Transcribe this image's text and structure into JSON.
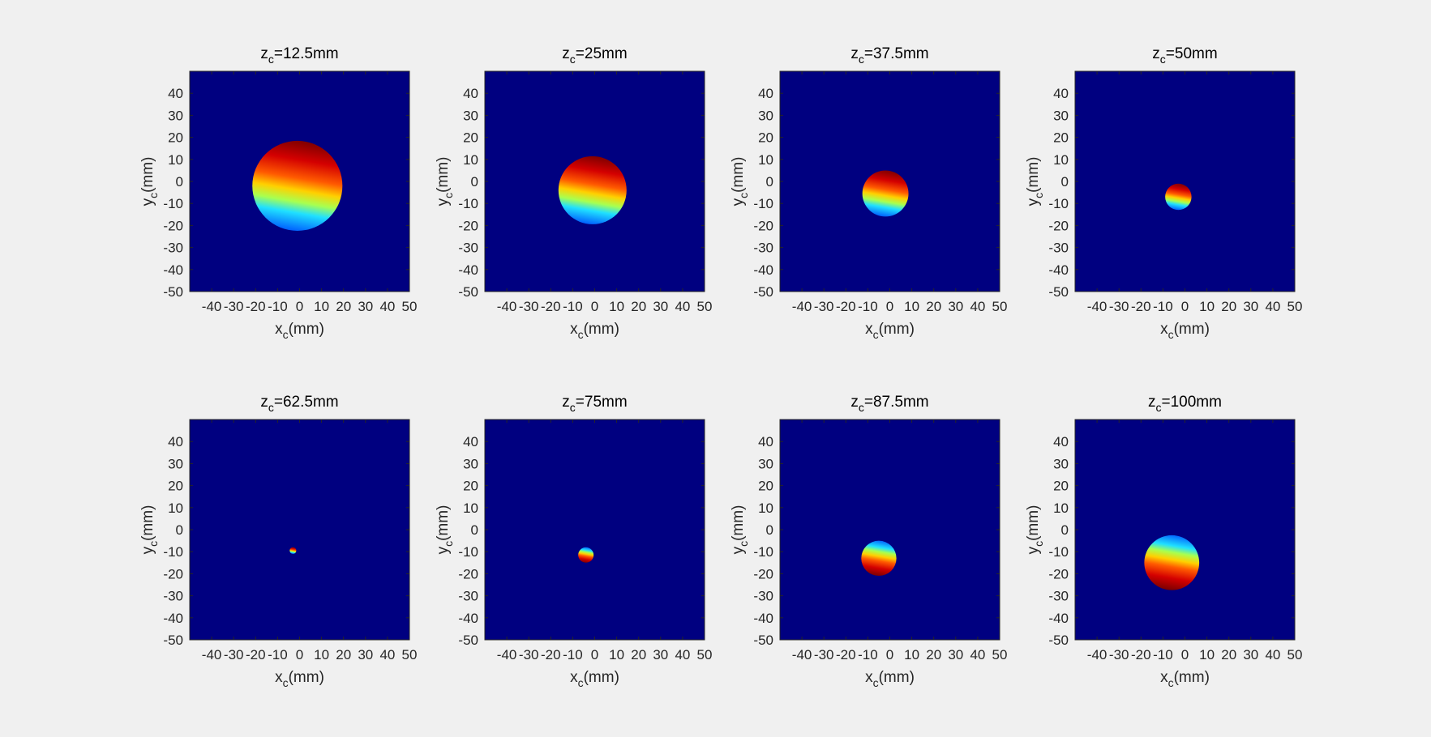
{
  "colors": {
    "figure_background": "#f0f0f0",
    "colormap": "jet",
    "low_value_color": "#000080",
    "axis_color": "#262626"
  },
  "chart_data": [
    {
      "type": "heatmap",
      "title": {
        "main": "z",
        "sub": "c",
        "suffix": "=12.5mm"
      },
      "xlabel": {
        "main": "x",
        "sub": "c",
        "suffix": "(mm)"
      },
      "ylabel": {
        "main": "y",
        "sub": "c",
        "suffix": "(mm)"
      },
      "xlim": [
        -50,
        50
      ],
      "ylim": [
        -50,
        50
      ],
      "xticks": [
        -40,
        -30,
        -20,
        -10,
        0,
        10,
        20,
        30,
        40,
        50
      ],
      "xtick_labels": [
        "-40",
        "-30",
        "-20",
        "-10",
        "0",
        "10",
        "20",
        "30",
        "40",
        "50"
      ],
      "yticks": [
        40,
        30,
        20,
        10,
        0,
        -10,
        -20,
        -30,
        -40,
        -50
      ],
      "ytick_labels": [
        "40",
        "30",
        "20",
        "10",
        "0",
        "-10",
        "-20",
        "-30",
        "-40",
        "-50"
      ],
      "spot": {
        "center_x": -1,
        "center_y": -2,
        "radius": 20.5,
        "gradient": "red-top-blue-bottom"
      }
    },
    {
      "type": "heatmap",
      "title": {
        "main": "z",
        "sub": "c",
        "suffix": "=25mm"
      },
      "xlabel": {
        "main": "x",
        "sub": "c",
        "suffix": "(mm)"
      },
      "ylabel": {
        "main": "y",
        "sub": "c",
        "suffix": "(mm)"
      },
      "xlim": [
        -50,
        50
      ],
      "ylim": [
        -50,
        50
      ],
      "xticks": [
        -40,
        -30,
        -20,
        -10,
        0,
        10,
        20,
        30,
        40,
        50
      ],
      "xtick_labels": [
        "-40",
        "-30",
        "-20",
        "-10",
        "0",
        "10",
        "20",
        "30",
        "40",
        "50"
      ],
      "yticks": [
        40,
        30,
        20,
        10,
        0,
        -10,
        -20,
        -30,
        -40,
        -50
      ],
      "ytick_labels": [
        "40",
        "30",
        "20",
        "10",
        "0",
        "-10",
        "-20",
        "-30",
        "-40",
        "-50"
      ],
      "spot": {
        "center_x": -1,
        "center_y": -4,
        "radius": 15.5,
        "gradient": "red-top-blue-bottom"
      }
    },
    {
      "type": "heatmap",
      "title": {
        "main": "z",
        "sub": "c",
        "suffix": "=37.5mm"
      },
      "xlabel": {
        "main": "x",
        "sub": "c",
        "suffix": "(mm)"
      },
      "ylabel": {
        "main": "y",
        "sub": "c",
        "suffix": "(mm)"
      },
      "xlim": [
        -50,
        50
      ],
      "ylim": [
        -50,
        50
      ],
      "xticks": [
        -40,
        -30,
        -20,
        -10,
        0,
        10,
        20,
        30,
        40,
        50
      ],
      "xtick_labels": [
        "-40",
        "-30",
        "-20",
        "-10",
        "0",
        "10",
        "20",
        "30",
        "40",
        "50"
      ],
      "yticks": [
        40,
        30,
        20,
        10,
        0,
        -10,
        -20,
        -30,
        -40,
        -50
      ],
      "ytick_labels": [
        "40",
        "30",
        "20",
        "10",
        "0",
        "-10",
        "-20",
        "-30",
        "-40",
        "-50"
      ],
      "spot": {
        "center_x": -2,
        "center_y": -5.5,
        "radius": 10.5,
        "gradient": "red-top-blue-bottom"
      }
    },
    {
      "type": "heatmap",
      "title": {
        "main": "z",
        "sub": "c",
        "suffix": "=50mm"
      },
      "xlabel": {
        "main": "x",
        "sub": "c",
        "suffix": "(mm)"
      },
      "ylabel": {
        "main": "y",
        "sub": "c",
        "suffix": "(mm)"
      },
      "xlim": [
        -50,
        50
      ],
      "ylim": [
        -50,
        50
      ],
      "xticks": [
        -40,
        -30,
        -20,
        -10,
        0,
        10,
        20,
        30,
        40,
        50
      ],
      "xtick_labels": [
        "-40",
        "-30",
        "-20",
        "-10",
        "0",
        "10",
        "20",
        "30",
        "40",
        "50"
      ],
      "yticks": [
        40,
        30,
        20,
        10,
        0,
        -10,
        -20,
        -30,
        -40,
        -50
      ],
      "ytick_labels": [
        "40",
        "30",
        "20",
        "10",
        "0",
        "-10",
        "-20",
        "-30",
        "-40",
        "-50"
      ],
      "spot": {
        "center_x": -3,
        "center_y": -7,
        "radius": 6,
        "gradient": "red-top-blue-bottom"
      }
    },
    {
      "type": "heatmap",
      "title": {
        "main": "z",
        "sub": "c",
        "suffix": "=62.5mm"
      },
      "xlabel": {
        "main": "x",
        "sub": "c",
        "suffix": "(mm)"
      },
      "ylabel": {
        "main": "y",
        "sub": "c",
        "suffix": "(mm)"
      },
      "xlim": [
        -50,
        50
      ],
      "ylim": [
        -50,
        50
      ],
      "xticks": [
        -40,
        -30,
        -20,
        -10,
        0,
        10,
        20,
        30,
        40,
        50
      ],
      "xtick_labels": [
        "-40",
        "-30",
        "-20",
        "-10",
        "0",
        "10",
        "20",
        "30",
        "40",
        "50"
      ],
      "yticks": [
        40,
        30,
        20,
        10,
        0,
        -10,
        -20,
        -30,
        -40,
        -50
      ],
      "ytick_labels": [
        "40",
        "30",
        "20",
        "10",
        "0",
        "-10",
        "-20",
        "-30",
        "-40",
        "-50"
      ],
      "spot": {
        "center_x": -3,
        "center_y": -9.5,
        "radius": 1.5,
        "gradient": "red-top-blue-bottom"
      }
    },
    {
      "type": "heatmap",
      "title": {
        "main": "z",
        "sub": "c",
        "suffix": "=75mm"
      },
      "xlabel": {
        "main": "x",
        "sub": "c",
        "suffix": "(mm)"
      },
      "ylabel": {
        "main": "y",
        "sub": "c",
        "suffix": "(mm)"
      },
      "xlim": [
        -50,
        50
      ],
      "ylim": [
        -50,
        50
      ],
      "xticks": [
        -40,
        -30,
        -20,
        -10,
        0,
        10,
        20,
        30,
        40,
        50
      ],
      "xtick_labels": [
        "-40",
        "-30",
        "-20",
        "-10",
        "0",
        "10",
        "20",
        "30",
        "40",
        "50"
      ],
      "yticks": [
        40,
        30,
        20,
        10,
        0,
        -10,
        -20,
        -30,
        -40,
        -50
      ],
      "ytick_labels": [
        "40",
        "30",
        "20",
        "10",
        "0",
        "-10",
        "-20",
        "-30",
        "-40",
        "-50"
      ],
      "spot": {
        "center_x": -4,
        "center_y": -11.5,
        "radius": 3.5,
        "gradient": "blue-top-red-bottom"
      }
    },
    {
      "type": "heatmap",
      "title": {
        "main": "z",
        "sub": "c",
        "suffix": "=87.5mm"
      },
      "xlabel": {
        "main": "x",
        "sub": "c",
        "suffix": "(mm)"
      },
      "ylabel": {
        "main": "y",
        "sub": "c",
        "suffix": "(mm)"
      },
      "xlim": [
        -50,
        50
      ],
      "ylim": [
        -50,
        50
      ],
      "xticks": [
        -40,
        -30,
        -20,
        -10,
        0,
        10,
        20,
        30,
        40,
        50
      ],
      "xtick_labels": [
        "-40",
        "-30",
        "-20",
        "-10",
        "0",
        "10",
        "20",
        "30",
        "40",
        "50"
      ],
      "yticks": [
        40,
        30,
        20,
        10,
        0,
        -10,
        -20,
        -30,
        -40,
        -50
      ],
      "ytick_labels": [
        "40",
        "30",
        "20",
        "10",
        "0",
        "-10",
        "-20",
        "-30",
        "-40",
        "-50"
      ],
      "spot": {
        "center_x": -5,
        "center_y": -13,
        "radius": 8,
        "gradient": "blue-top-red-bottom"
      }
    },
    {
      "type": "heatmap",
      "title": {
        "main": "z",
        "sub": "c",
        "suffix": "=100mm"
      },
      "xlabel": {
        "main": "x",
        "sub": "c",
        "suffix": "(mm)"
      },
      "ylabel": {
        "main": "y",
        "sub": "c",
        "suffix": "(mm)"
      },
      "xlim": [
        -50,
        50
      ],
      "ylim": [
        -50,
        50
      ],
      "xticks": [
        -40,
        -30,
        -20,
        -10,
        0,
        10,
        20,
        30,
        40,
        50
      ],
      "xtick_labels": [
        "-40",
        "-30",
        "-20",
        "-10",
        "0",
        "10",
        "20",
        "30",
        "40",
        "50"
      ],
      "yticks": [
        40,
        30,
        20,
        10,
        0,
        -10,
        -20,
        -30,
        -40,
        -50
      ],
      "ytick_labels": [
        "40",
        "30",
        "20",
        "10",
        "0",
        "-10",
        "-20",
        "-30",
        "-40",
        "-50"
      ],
      "spot": {
        "center_x": -6,
        "center_y": -15,
        "radius": 12.5,
        "gradient": "blue-top-red-bottom"
      }
    }
  ]
}
